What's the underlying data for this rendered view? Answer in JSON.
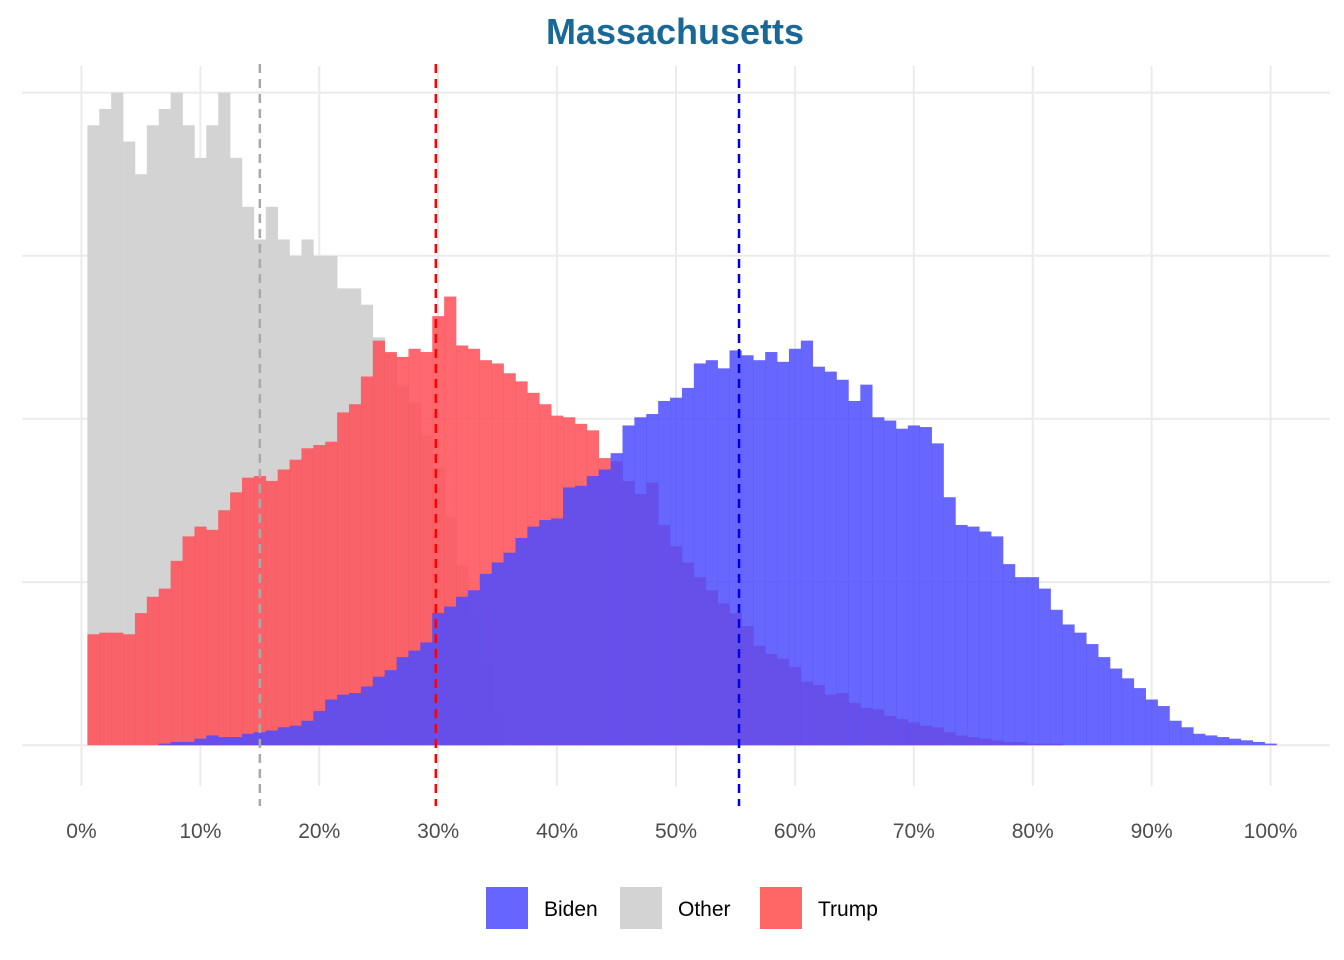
{
  "chart_data": {
    "type": "histogram",
    "title": "Massachusetts",
    "title_color": "#1a6896",
    "xlabel": "",
    "ylabel": "",
    "xlim": [
      -0.05,
      1.05
    ],
    "ylim": [
      -0.025,
      0.42
    ],
    "bin_width": 0.01,
    "x_ticks": [
      0,
      0.1,
      0.2,
      0.3,
      0.4,
      0.5,
      0.6,
      0.7,
      0.8,
      0.9,
      1.0
    ],
    "x_tick_labels": [
      "0%",
      "10%",
      "20%",
      "30%",
      "40%",
      "50%",
      "60%",
      "70%",
      "80%",
      "90%",
      "100%"
    ],
    "y_gridlines": [
      0,
      0.1,
      0.2,
      0.3,
      0.4
    ],
    "y_axis_labels_shown": false,
    "grid": true,
    "legend_position": "bottom",
    "series": [
      {
        "name": "Other",
        "color": "#d3d3d3",
        "opacity": 1.0,
        "bin_start": 0.005,
        "heights": [
          0.38,
          0.39,
          0.4,
          0.37,
          0.35,
          0.38,
          0.39,
          0.4,
          0.38,
          0.36,
          0.38,
          0.4,
          0.36,
          0.33,
          0.31,
          0.33,
          0.31,
          0.3,
          0.31,
          0.3,
          0.3,
          0.28,
          0.28,
          0.27,
          0.25,
          0.24,
          0.22,
          0.21,
          0.19,
          0.17,
          0.14,
          0.11,
          0.08,
          0.05,
          0.02
        ]
      },
      {
        "name": "Trump",
        "color": "#ff4d55",
        "opacity": 0.85,
        "bin_start": 0.005,
        "heights": [
          0.068,
          0.069,
          0.069,
          0.068,
          0.081,
          0.091,
          0.096,
          0.113,
          0.128,
          0.134,
          0.132,
          0.144,
          0.155,
          0.164,
          0.165,
          0.162,
          0.169,
          0.175,
          0.182,
          0.184,
          0.186,
          0.204,
          0.209,
          0.226,
          0.248,
          0.241,
          0.238,
          0.243,
          0.241,
          0.263,
          0.275,
          0.245,
          0.243,
          0.236,
          0.234,
          0.228,
          0.223,
          0.216,
          0.209,
          0.202,
          0.201,
          0.197,
          0.193,
          0.176,
          0.174,
          0.162,
          0.154,
          0.161,
          0.135,
          0.122,
          0.112,
          0.103,
          0.095,
          0.087,
          0.081,
          0.073,
          0.061,
          0.056,
          0.053,
          0.048,
          0.039,
          0.037,
          0.031,
          0.032,
          0.026,
          0.023,
          0.022,
          0.018,
          0.016,
          0.014,
          0.012,
          0.011,
          0.008,
          0.006,
          0.005,
          0.004,
          0.003,
          0.002,
          0.002,
          0.001,
          0.001,
          0.001
        ]
      },
      {
        "name": "Biden",
        "color": "#4c4cff",
        "opacity": 0.85,
        "bin_start": 0.005,
        "heights": [
          0.0,
          0.0,
          0.0,
          0.0,
          0.0,
          0.0,
          0.001,
          0.002,
          0.002,
          0.004,
          0.006,
          0.005,
          0.005,
          0.007,
          0.008,
          0.009,
          0.011,
          0.012,
          0.015,
          0.021,
          0.028,
          0.031,
          0.032,
          0.036,
          0.042,
          0.046,
          0.054,
          0.058,
          0.063,
          0.081,
          0.085,
          0.091,
          0.095,
          0.105,
          0.112,
          0.118,
          0.127,
          0.134,
          0.138,
          0.139,
          0.158,
          0.159,
          0.165,
          0.169,
          0.179,
          0.196,
          0.201,
          0.203,
          0.211,
          0.213,
          0.219,
          0.234,
          0.236,
          0.231,
          0.242,
          0.239,
          0.236,
          0.241,
          0.235,
          0.243,
          0.248,
          0.232,
          0.229,
          0.224,
          0.211,
          0.221,
          0.201,
          0.199,
          0.194,
          0.196,
          0.195,
          0.185,
          0.152,
          0.135,
          0.134,
          0.131,
          0.128,
          0.111,
          0.103,
          0.103,
          0.096,
          0.083,
          0.074,
          0.069,
          0.062,
          0.054,
          0.047,
          0.041,
          0.035,
          0.028,
          0.024,
          0.015,
          0.011,
          0.007,
          0.006,
          0.005,
          0.004,
          0.003,
          0.002,
          0.001
        ]
      }
    ],
    "reference_lines": [
      {
        "series": "Other",
        "x": 0.15,
        "color": "#a9a9a9",
        "dash": true
      },
      {
        "series": "Trump",
        "x": 0.298,
        "color": "#ff0000",
        "dash": true
      },
      {
        "series": "Biden",
        "x": 0.553,
        "color": "#0000e0",
        "dash": true
      }
    ],
    "legend": {
      "entries": [
        {
          "label": "Biden",
          "color": "#6666ff"
        },
        {
          "label": "Other",
          "color": "#d3d3d3"
        },
        {
          "label": "Trump",
          "color": "#ff6666"
        }
      ]
    }
  }
}
